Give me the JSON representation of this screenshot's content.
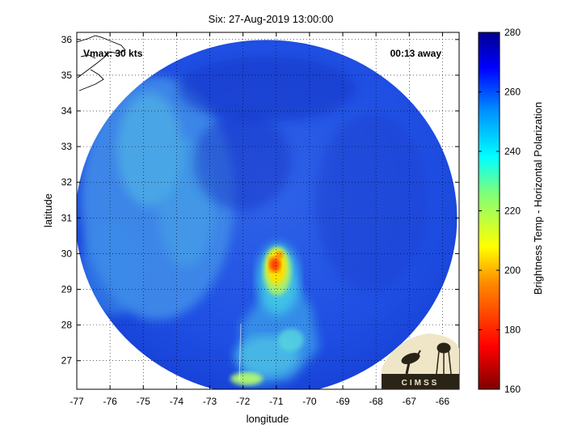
{
  "chart_data": {
    "type": "heatmap",
    "title": "Six: 27-Aug-2019 13:00:00",
    "xlabel": "longitude",
    "ylabel": "latitude",
    "xlim": [
      -77,
      -65.5
    ],
    "ylim": [
      26.2,
      36.2
    ],
    "x_ticks": [
      -77,
      -76,
      -75,
      -74,
      -73,
      -72,
      -71,
      -70,
      -69,
      -68,
      -67,
      -66
    ],
    "y_ticks": [
      27,
      28,
      29,
      30,
      31,
      32,
      33,
      34,
      35,
      36
    ],
    "grid": true,
    "colorbar": {
      "label": "Brightness Temp - Horizontal Polarization",
      "range": [
        160,
        280
      ],
      "ticks": [
        160,
        180,
        200,
        220,
        240,
        260,
        280
      ],
      "colormap": "jet"
    },
    "annotations": {
      "vmax": "Vmax: 30 kts",
      "time_away": "00:13 away"
    },
    "swath_center": {
      "lon": -71.3,
      "lat": 31.0
    },
    "storm_center": {
      "lon": -71.0,
      "lat": 29.7
    },
    "features": [
      {
        "kind": "cold-core",
        "lon": -71.05,
        "lat": 29.55,
        "tb": 180
      },
      {
        "kind": "cold-core",
        "lon": -70.9,
        "lat": 29.9,
        "tb": 188
      },
      {
        "kind": "convective-band",
        "lon": -71.2,
        "lat": 29.0,
        "tb": 215
      },
      {
        "kind": "convective-band",
        "lon": -72.0,
        "lat": 26.5,
        "tb": 235
      },
      {
        "kind": "dry-slot",
        "lon": -74.5,
        "lat": 32.5,
        "tb": 248
      }
    ]
  },
  "logo": {
    "text": "CIMSS"
  },
  "colors": {
    "background": "#ffffff",
    "ocean": "#1e50e6",
    "axis": "#000000"
  }
}
